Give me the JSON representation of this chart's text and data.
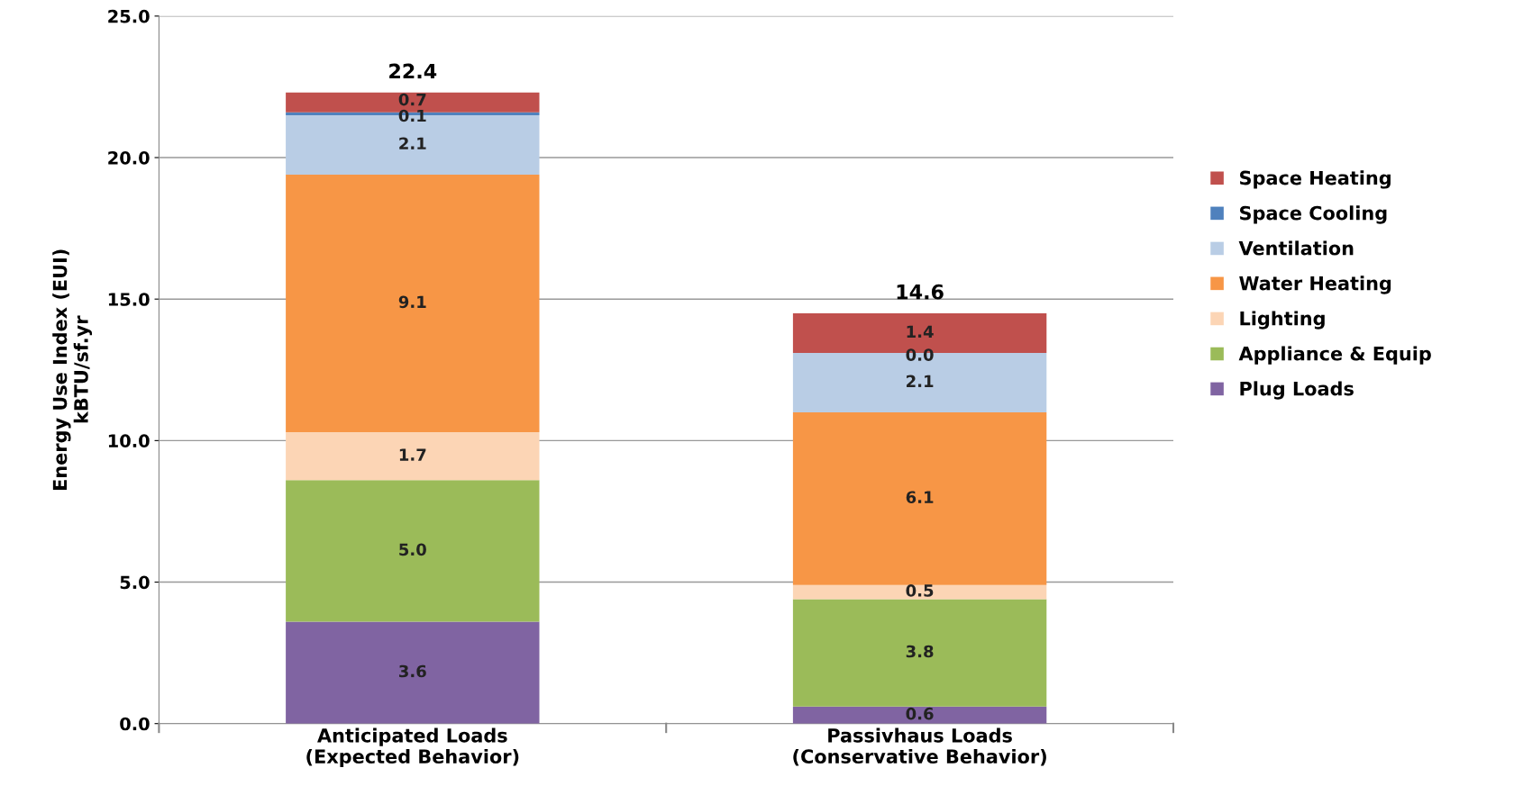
{
  "chart_data": {
    "type": "bar",
    "stacked": true,
    "ylabel": "Energy Use Index (EUI)\nkBTU/sf.yr",
    "categories": [
      "Anticipated Loads\n(Expected Behavior)",
      "Passivhaus Loads\n(Conservative Behavior)"
    ],
    "series": [
      {
        "name": "Plug Loads",
        "color": "#8064a2",
        "values": [
          3.6,
          0.6
        ],
        "value_labels": [
          "3.6",
          "0.6"
        ]
      },
      {
        "name": "Appliance & Equip",
        "color": "#9bbb59",
        "values": [
          5.0,
          3.8
        ],
        "value_labels": [
          "5.0",
          "3.8"
        ]
      },
      {
        "name": "Lighting",
        "color": "#fcd5b5",
        "values": [
          1.7,
          0.5
        ],
        "value_labels": [
          "1.7",
          "0.5"
        ]
      },
      {
        "name": "Water Heating",
        "color": "#f79646",
        "values": [
          9.1,
          6.1
        ],
        "value_labels": [
          "9.1",
          "6.1"
        ]
      },
      {
        "name": "Ventilation",
        "color": "#b9cde5",
        "values": [
          2.1,
          2.1
        ],
        "value_labels": [
          "2.1",
          "2.1"
        ]
      },
      {
        "name": "Space Cooling",
        "color": "#4f81bd",
        "values": [
          0.1,
          0.0
        ],
        "value_labels": [
          "0.1",
          "0.0"
        ]
      },
      {
        "name": "Space Heating",
        "color": "#c0504d",
        "values": [
          0.7,
          1.4
        ],
        "value_labels": [
          "0.7",
          "1.4"
        ]
      }
    ],
    "totals": [
      "22.4",
      "14.6"
    ],
    "ylim": [
      0,
      25
    ],
    "yticks": [
      {
        "value": 0,
        "label": "0.0"
      },
      {
        "value": 5,
        "label": "5.0"
      },
      {
        "value": 10,
        "label": "10.0"
      },
      {
        "value": 15,
        "label": "15.0"
      },
      {
        "value": 20,
        "label": "20.0"
      },
      {
        "value": 25,
        "label": "25.0"
      }
    ],
    "grid": "y",
    "legend": "right"
  }
}
